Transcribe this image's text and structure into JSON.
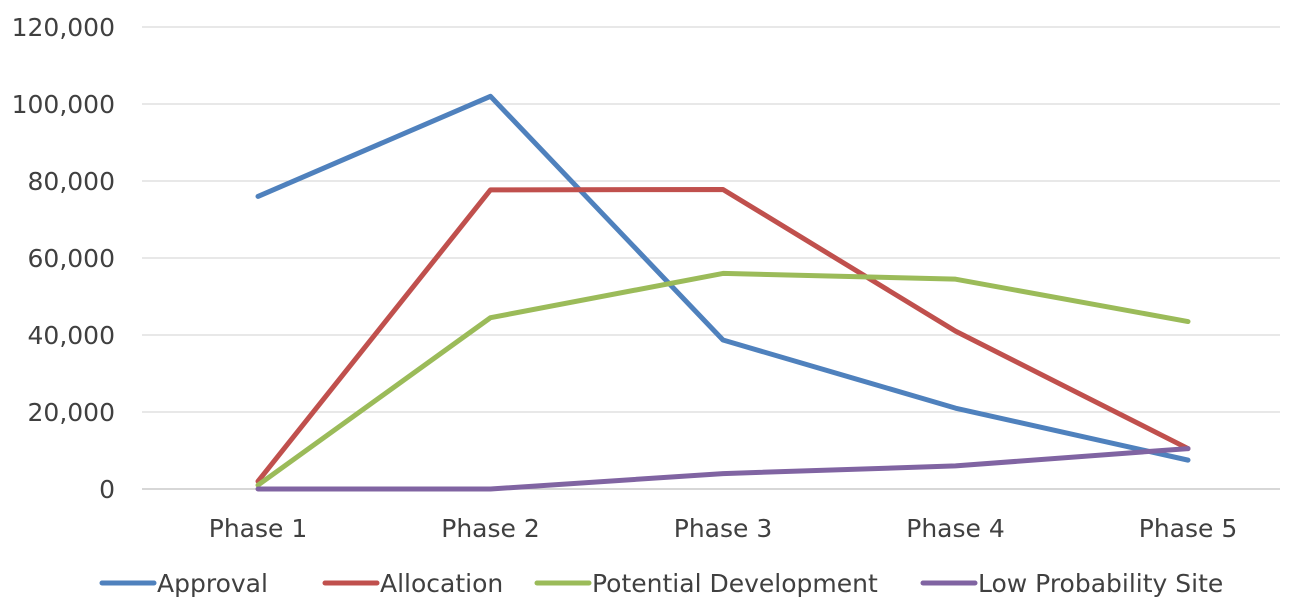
{
  "chart_data": {
    "type": "line",
    "categories": [
      "Phase 1",
      "Phase 2",
      "Phase 3",
      "Phase 4",
      "Phase 5"
    ],
    "series": [
      {
        "name": "Approval",
        "color": "#4F81BD",
        "values": [
          76000,
          102000,
          38700,
          21000,
          7500
        ]
      },
      {
        "name": "Allocation",
        "color": "#C0504D",
        "values": [
          2000,
          77700,
          77800,
          41000,
          10500
        ]
      },
      {
        "name": "Potential Development",
        "color": "#9BBB59",
        "values": [
          1000,
          44500,
          56000,
          54500,
          43500
        ]
      },
      {
        "name": "Low Probability Site",
        "color": "#8064A2",
        "values": [
          0,
          0,
          4000,
          6000,
          10500
        ]
      }
    ],
    "ylim": [
      0,
      120000
    ],
    "yticks": [
      "0",
      "20,000",
      "40,000",
      "60,000",
      "80,000",
      "100,000",
      "120,000"
    ],
    "ytick_values": [
      0,
      20000,
      40000,
      60000,
      80000,
      100000,
      120000
    ],
    "grid": true,
    "legend": "bottom",
    "title": "",
    "xlabel": "",
    "ylabel": ""
  }
}
